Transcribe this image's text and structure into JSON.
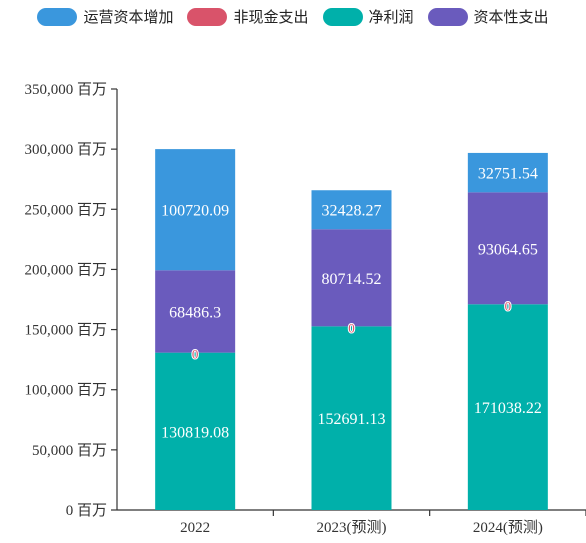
{
  "chart_data": {
    "type": "bar",
    "stacked": true,
    "categories": [
      "2022",
      "2023(预测)",
      "2024(预测)"
    ],
    "y_unit": "百万",
    "ylim": [
      0,
      350000
    ],
    "y_ticks": [
      {
        "value": 0,
        "label": "0 百万"
      },
      {
        "value": 50000,
        "label": "50,000 百万"
      },
      {
        "value": 100000,
        "label": "100,000 百万"
      },
      {
        "value": 150000,
        "label": "150,000 百万"
      },
      {
        "value": 200000,
        "label": "200,000 百万"
      },
      {
        "value": 250000,
        "label": "250,000 百万"
      },
      {
        "value": 300000,
        "label": "300,000 百万"
      },
      {
        "value": 350000,
        "label": "350,000 百万"
      }
    ],
    "legend_position": "top",
    "series": [
      {
        "name": "净利润",
        "color": "#00b0aa",
        "values": [
          130819.08,
          152691.13,
          171038.22
        ],
        "labels": [
          "130819.08",
          "152691.13",
          "171038.22"
        ]
      },
      {
        "name": "非现金支出",
        "color": "#d9536a",
        "values": [
          0,
          0,
          0
        ],
        "labels": [
          "0",
          "0",
          "0"
        ]
      },
      {
        "name": "资本性支出",
        "color": "#6a5bbd",
        "values": [
          68486.3,
          80714.52,
          93064.65
        ],
        "labels": [
          "68486.3",
          "80714.52",
          "93064.65"
        ]
      },
      {
        "name": "运营资本增加",
        "color": "#3a97dd",
        "values": [
          100720.09,
          32428.27,
          32751.54
        ],
        "labels": [
          "100720.09",
          "32428.27",
          "32751.54"
        ]
      }
    ],
    "legend_order": [
      "运营资本增加",
      "非现金支出",
      "净利润",
      "资本性支出"
    ]
  }
}
